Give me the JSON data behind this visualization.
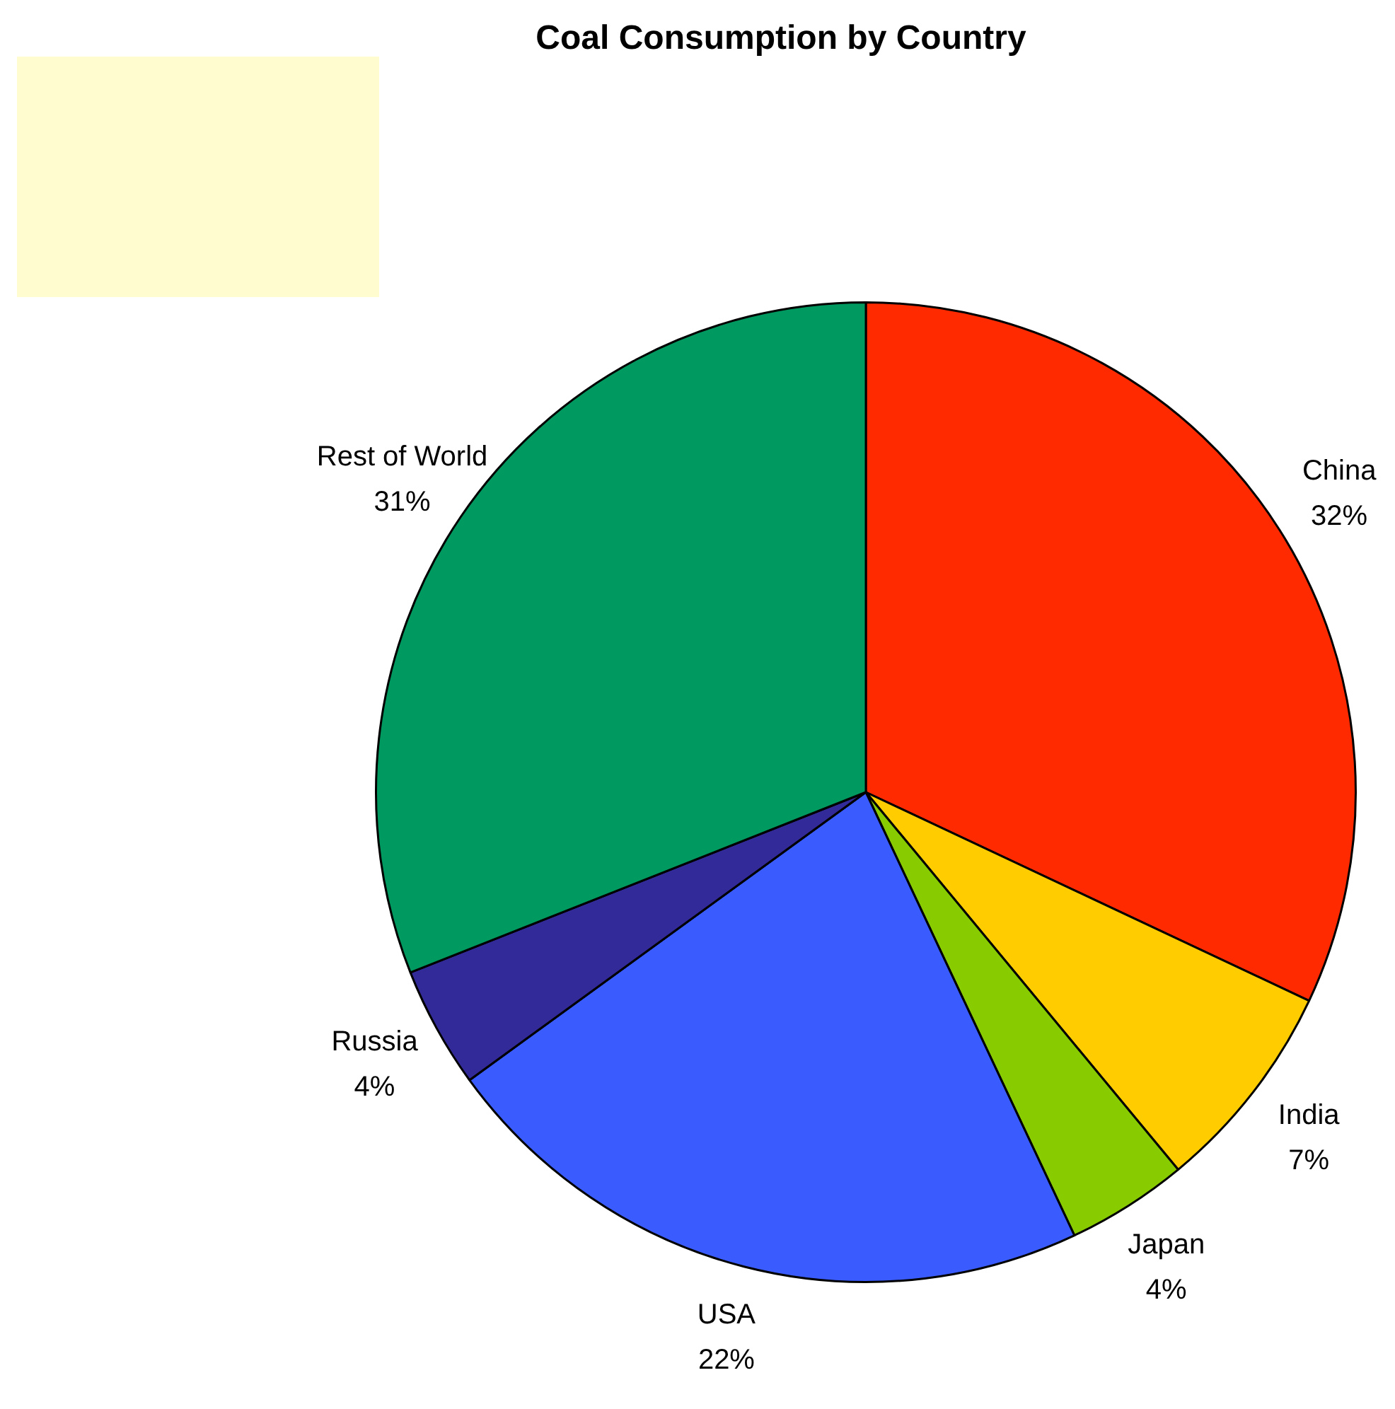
{
  "chart_data": {
    "type": "pie",
    "title": "Coal Consumption by Country",
    "categories": [
      "China",
      "India",
      "Japan",
      "USA",
      "Russia",
      "Rest of World"
    ],
    "values": [
      32,
      7,
      4,
      22,
      4,
      31
    ],
    "value_labels": [
      "32%",
      "7%",
      "4%",
      "22%",
      "4%",
      "31%"
    ],
    "colors": [
      "#ff2a00",
      "#ffcc00",
      "#88cc00",
      "#3a5cff",
      "#332a99",
      "#009960"
    ],
    "legend": false
  }
}
